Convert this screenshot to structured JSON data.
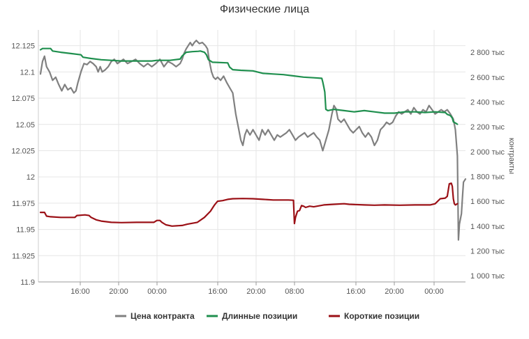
{
  "chart_data": {
    "type": "line",
    "title": "Физические лица",
    "xlabel": "",
    "ylabel": "",
    "y2label": "контракты",
    "ylim": [
      11.9,
      12.14
    ],
    "y2lim": [
      950,
      2980
    ],
    "x_ticks": [
      "16:00",
      "20:00",
      "00:00",
      "16:00",
      "20:00",
      "08:00",
      "16:00",
      "20:00",
      "00:00"
    ],
    "y_ticks": [
      "11.9",
      "11.925",
      "11.95",
      "11.975",
      "12",
      "12.025",
      "12.05",
      "12.075",
      "12.1",
      "12.125"
    ],
    "y2_ticks": [
      "1 000 тыс",
      "1 200 тыс",
      "1 400 тыс",
      "1 600 тыс",
      "1 800 тыс",
      "2 000 тыс",
      "2 200 тыс",
      "2 400 тыс",
      "2 600 тыс",
      "2 800 тыс"
    ],
    "grid": true,
    "legend_position": "bottom",
    "series": [
      {
        "name": "Цена контракта",
        "axis": "left",
        "color": "#808080",
        "points": [
          [
            0,
            12.098
          ],
          [
            2,
            12.11
          ],
          [
            4,
            12.115
          ],
          [
            6,
            12.105
          ],
          [
            9,
            12.1
          ],
          [
            12,
            12.092
          ],
          [
            15,
            12.095
          ],
          [
            18,
            12.088
          ],
          [
            21,
            12.082
          ],
          [
            24,
            12.088
          ],
          [
            27,
            12.083
          ],
          [
            30,
            12.085
          ],
          [
            33,
            12.08
          ],
          [
            35,
            12.082
          ],
          [
            37,
            12.09
          ],
          [
            40,
            12.1
          ],
          [
            43,
            12.108
          ],
          [
            46,
            12.107
          ],
          [
            49,
            12.11
          ],
          [
            52,
            12.108
          ],
          [
            55,
            12.105
          ],
          [
            57,
            12.1
          ],
          [
            59,
            12.105
          ],
          [
            61,
            12.1
          ],
          [
            64,
            12.102
          ],
          [
            67,
            12.105
          ],
          [
            70,
            12.11
          ],
          [
            73,
            12.112
          ],
          [
            76,
            12.108
          ],
          [
            79,
            12.11
          ],
          [
            82,
            12.112
          ],
          [
            86,
            12.108
          ],
          [
            90,
            12.11
          ],
          [
            94,
            12.112
          ],
          [
            98,
            12.108
          ],
          [
            102,
            12.105
          ],
          [
            106,
            12.108
          ],
          [
            110,
            12.105
          ],
          [
            114,
            12.108
          ],
          [
            118,
            12.112
          ],
          [
            122,
            12.105
          ],
          [
            126,
            12.11
          ],
          [
            130,
            12.108
          ],
          [
            134,
            12.105
          ],
          [
            138,
            12.108
          ],
          [
            140,
            12.112
          ],
          [
            142,
            12.118
          ],
          [
            144,
            12.122
          ],
          [
            146,
            12.125
          ],
          [
            148,
            12.128
          ],
          [
            150,
            12.125
          ],
          [
            152,
            12.128
          ],
          [
            154,
            12.13
          ],
          [
            157,
            12.127
          ],
          [
            160,
            12.128
          ],
          [
            163,
            12.125
          ],
          [
            165,
            12.122
          ],
          [
            167,
            12.11
          ],
          [
            169,
            12.1
          ],
          [
            171,
            12.095
          ],
          [
            173,
            12.093
          ],
          [
            175,
            12.095
          ],
          [
            178,
            12.092
          ],
          [
            181,
            12.096
          ],
          [
            184,
            12.09
          ],
          [
            187,
            12.085
          ],
          [
            190,
            12.08
          ],
          [
            193,
            12.06
          ],
          [
            196,
            12.045
          ],
          [
            198,
            12.035
          ],
          [
            200,
            12.03
          ],
          [
            202,
            12.04
          ],
          [
            204,
            12.045
          ],
          [
            207,
            12.04
          ],
          [
            210,
            12.045
          ],
          [
            213,
            12.04
          ],
          [
            216,
            12.035
          ],
          [
            219,
            12.045
          ],
          [
            222,
            12.04
          ],
          [
            225,
            12.045
          ],
          [
            228,
            12.04
          ],
          [
            231,
            12.035
          ],
          [
            234,
            12.04
          ],
          [
            237,
            12.038
          ],
          [
            240,
            12.04
          ],
          [
            243,
            12.042
          ],
          [
            246,
            12.045
          ],
          [
            249,
            12.04
          ],
          [
            252,
            12.035
          ],
          [
            255,
            12.038
          ],
          [
            258,
            12.04
          ],
          [
            261,
            12.042
          ],
          [
            264,
            12.038
          ],
          [
            267,
            12.04
          ],
          [
            270,
            12.042
          ],
          [
            273,
            12.038
          ],
          [
            276,
            12.035
          ],
          [
            279,
            12.025
          ],
          [
            282,
            12.035
          ],
          [
            285,
            12.045
          ],
          [
            288,
            12.06
          ],
          [
            290,
            12.068
          ],
          [
            292,
            12.065
          ],
          [
            294,
            12.055
          ],
          [
            297,
            12.052
          ],
          [
            300,
            12.055
          ],
          [
            303,
            12.05
          ],
          [
            306,
            12.045
          ],
          [
            309,
            12.042
          ],
          [
            312,
            12.045
          ],
          [
            315,
            12.048
          ],
          [
            318,
            12.042
          ],
          [
            321,
            12.038
          ],
          [
            324,
            12.042
          ],
          [
            327,
            12.038
          ],
          [
            330,
            12.03
          ],
          [
            333,
            12.035
          ],
          [
            336,
            12.045
          ],
          [
            339,
            12.048
          ],
          [
            342,
            12.052
          ],
          [
            345,
            12.05
          ],
          [
            348,
            12.052
          ],
          [
            351,
            12.058
          ],
          [
            354,
            12.062
          ],
          [
            357,
            12.06
          ],
          [
            360,
            12.062
          ],
          [
            363,
            12.064
          ],
          [
            366,
            12.06
          ],
          [
            369,
            12.066
          ],
          [
            372,
            12.062
          ],
          [
            375,
            12.06
          ],
          [
            378,
            12.064
          ],
          [
            381,
            12.062
          ],
          [
            384,
            12.068
          ],
          [
            387,
            12.064
          ],
          [
            390,
            12.06
          ],
          [
            393,
            12.062
          ],
          [
            396,
            12.064
          ],
          [
            399,
            12.062
          ],
          [
            402,
            12.064
          ],
          [
            405,
            12.06
          ],
          [
            408,
            12.055
          ],
          [
            410,
            12.045
          ],
          [
            412,
            12.02
          ],
          [
            413,
            11.94
          ],
          [
            414,
            11.955
          ],
          [
            416,
            11.965
          ],
          [
            417,
            11.98
          ],
          [
            418,
            11.995
          ],
          [
            420,
            11.998
          ]
        ]
      },
      {
        "name": "Длинные позиции",
        "axis": "right",
        "color": "#1f8f4e",
        "points": [
          [
            0,
            2820
          ],
          [
            2,
            2830
          ],
          [
            10,
            2830
          ],
          [
            12,
            2810
          ],
          [
            20,
            2800
          ],
          [
            30,
            2790
          ],
          [
            40,
            2780
          ],
          [
            42,
            2760
          ],
          [
            50,
            2750
          ],
          [
            60,
            2740
          ],
          [
            70,
            2735
          ],
          [
            80,
            2730
          ],
          [
            90,
            2730
          ],
          [
            110,
            2730
          ],
          [
            115,
            2735
          ],
          [
            128,
            2735
          ],
          [
            138,
            2745
          ],
          [
            140,
            2770
          ],
          [
            144,
            2800
          ],
          [
            150,
            2805
          ],
          [
            156,
            2808
          ],
          [
            158,
            2810
          ],
          [
            162,
            2800
          ],
          [
            164,
            2780
          ],
          [
            166,
            2740
          ],
          [
            170,
            2720
          ],
          [
            185,
            2715
          ],
          [
            187,
            2680
          ],
          [
            190,
            2660
          ],
          [
            198,
            2655
          ],
          [
            210,
            2650
          ],
          [
            220,
            2630
          ],
          [
            230,
            2625
          ],
          [
            240,
            2620
          ],
          [
            250,
            2610
          ],
          [
            260,
            2600
          ],
          [
            270,
            2595
          ],
          [
            278,
            2590
          ],
          [
            279,
            2560
          ],
          [
            280,
            2520
          ],
          [
            281,
            2480
          ],
          [
            282,
            2340
          ],
          [
            284,
            2330
          ],
          [
            290,
            2340
          ],
          [
            300,
            2330
          ],
          [
            310,
            2320
          ],
          [
            320,
            2330
          ],
          [
            330,
            2320
          ],
          [
            340,
            2310
          ],
          [
            350,
            2310
          ],
          [
            360,
            2320
          ],
          [
            370,
            2320
          ],
          [
            380,
            2315
          ],
          [
            390,
            2320
          ],
          [
            400,
            2315
          ],
          [
            402,
            2300
          ],
          [
            405,
            2290
          ],
          [
            407,
            2270
          ],
          [
            408,
            2240
          ],
          [
            410,
            2230
          ],
          [
            412,
            2220
          ]
        ]
      },
      {
        "name": "Короткие позиции",
        "axis": "right",
        "color": "#9b1016",
        "points": [
          [
            0,
            1510
          ],
          [
            4,
            1510
          ],
          [
            6,
            1480
          ],
          [
            10,
            1475
          ],
          [
            20,
            1470
          ],
          [
            34,
            1470
          ],
          [
            36,
            1485
          ],
          [
            44,
            1490
          ],
          [
            48,
            1485
          ],
          [
            50,
            1470
          ],
          [
            55,
            1450
          ],
          [
            60,
            1440
          ],
          [
            70,
            1430
          ],
          [
            80,
            1428
          ],
          [
            95,
            1430
          ],
          [
            112,
            1430
          ],
          [
            115,
            1445
          ],
          [
            118,
            1445
          ],
          [
            120,
            1430
          ],
          [
            124,
            1410
          ],
          [
            130,
            1400
          ],
          [
            140,
            1405
          ],
          [
            145,
            1415
          ],
          [
            155,
            1430
          ],
          [
            162,
            1470
          ],
          [
            168,
            1520
          ],
          [
            172,
            1570
          ],
          [
            175,
            1600
          ],
          [
            180,
            1605
          ],
          [
            185,
            1615
          ],
          [
            190,
            1620
          ],
          [
            200,
            1622
          ],
          [
            210,
            1620
          ],
          [
            220,
            1615
          ],
          [
            230,
            1610
          ],
          [
            245,
            1610
          ],
          [
            250,
            1608
          ],
          [
            251,
            1420
          ],
          [
            252,
            1470
          ],
          [
            254,
            1520
          ],
          [
            256,
            1525
          ],
          [
            258,
            1565
          ],
          [
            260,
            1560
          ],
          [
            262,
            1550
          ],
          [
            266,
            1560
          ],
          [
            270,
            1555
          ],
          [
            280,
            1570
          ],
          [
            290,
            1575
          ],
          [
            300,
            1580
          ],
          [
            305,
            1575
          ],
          [
            320,
            1570
          ],
          [
            330,
            1568
          ],
          [
            340,
            1570
          ],
          [
            355,
            1568
          ],
          [
            370,
            1570
          ],
          [
            385,
            1570
          ],
          [
            390,
            1580
          ],
          [
            395,
            1620
          ],
          [
            400,
            1625
          ],
          [
            402,
            1640
          ],
          [
            404,
            1740
          ],
          [
            406,
            1745
          ],
          [
            407,
            1720
          ],
          [
            408,
            1620
          ],
          [
            409,
            1580
          ],
          [
            410,
            1570
          ],
          [
            412,
            1580
          ]
        ]
      }
    ]
  }
}
